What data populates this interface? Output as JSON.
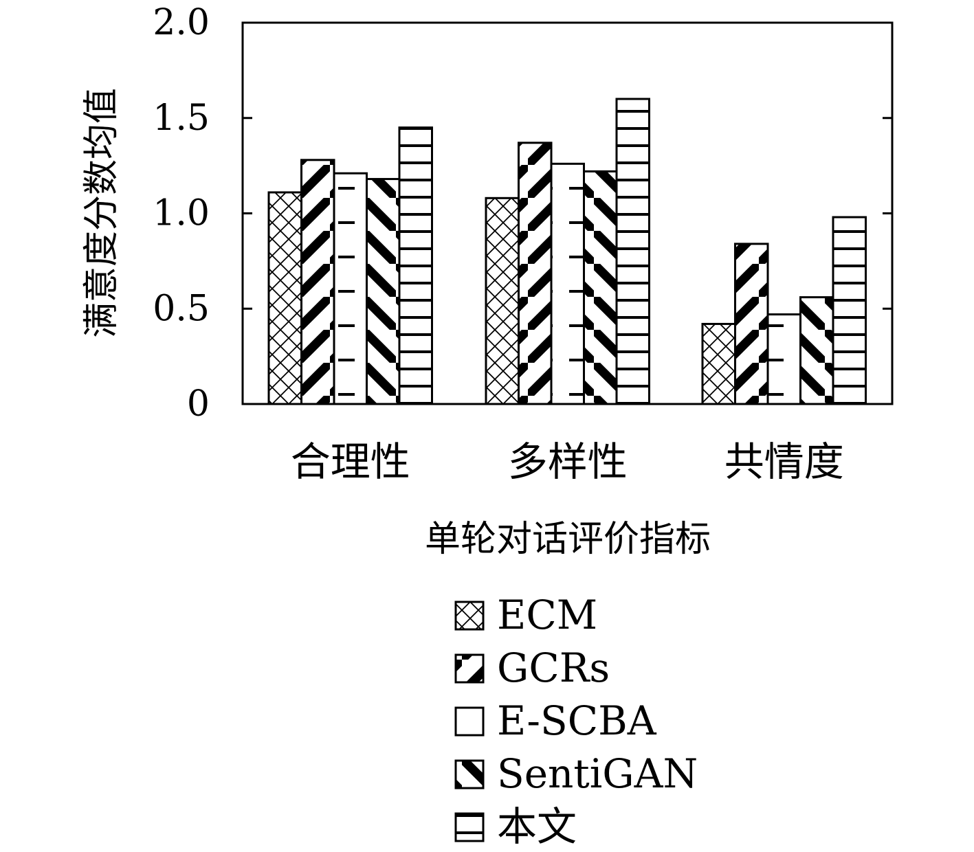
{
  "chart_data": {
    "type": "bar",
    "xlabel": "单轮对话评价指标",
    "ylabel": "满意度分数均值",
    "ylim": [
      0,
      2.0
    ],
    "yticks": [
      {
        "value": 0,
        "label": "0"
      },
      {
        "value": 0.5,
        "label": "0.5"
      },
      {
        "value": 1.0,
        "label": "1.0"
      },
      {
        "value": 1.5,
        "label": "1.5"
      },
      {
        "value": 2.0,
        "label": "2.0"
      }
    ],
    "categories": [
      "合理性",
      "多样性",
      "共情度"
    ],
    "series": [
      {
        "name": "ECM",
        "pattern": "crosshatch",
        "values": [
          1.11,
          1.08,
          0.42
        ]
      },
      {
        "name": "GCRs",
        "pattern": "diag-up",
        "values": [
          1.28,
          1.37,
          0.84
        ]
      },
      {
        "name": "E-SCBA",
        "pattern": "dashes",
        "values": [
          1.21,
          1.26,
          0.47
        ]
      },
      {
        "name": "SentiGAN",
        "pattern": "diag-down",
        "values": [
          1.18,
          1.22,
          0.56
        ]
      },
      {
        "name": "本文",
        "pattern": "horizontal",
        "values": [
          1.45,
          1.6,
          0.98
        ]
      }
    ],
    "grid": false,
    "legend_position": "bottom"
  }
}
